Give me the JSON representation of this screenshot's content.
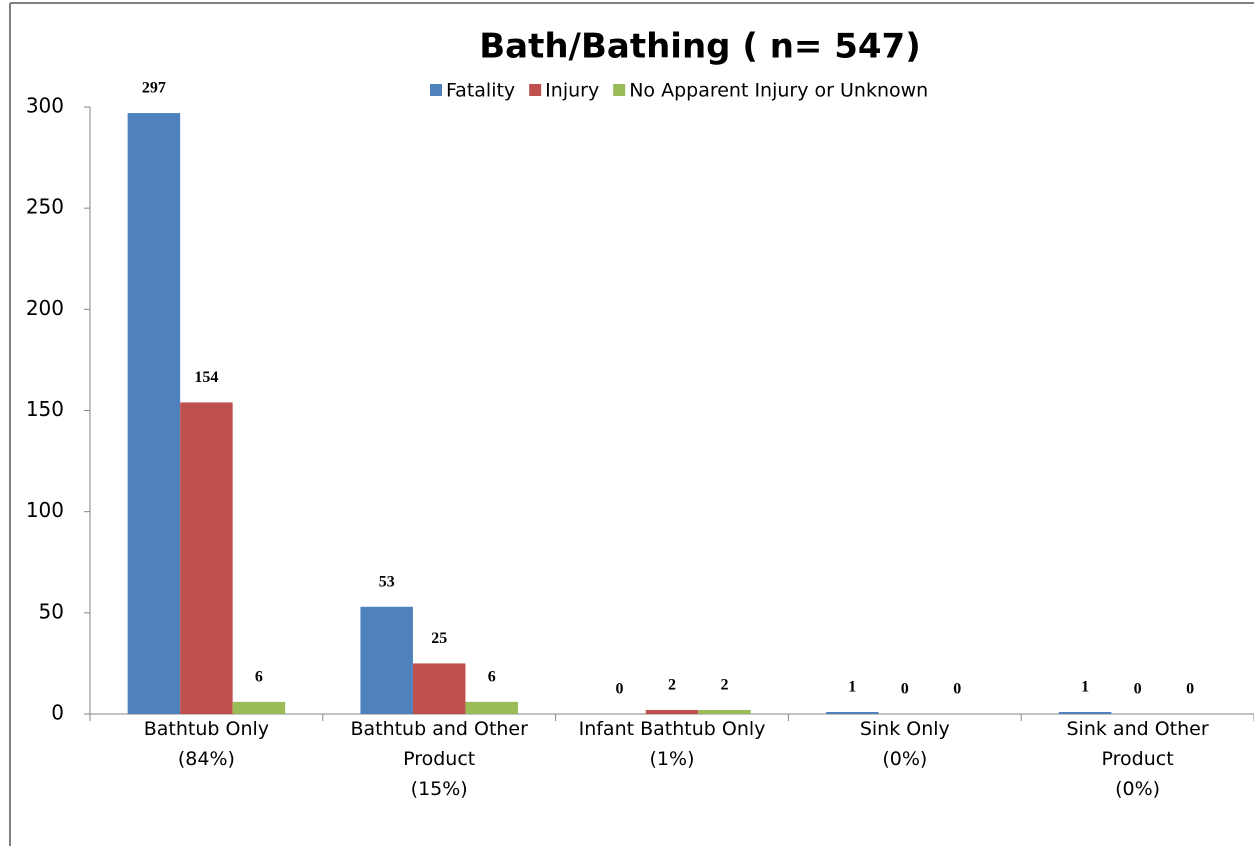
{
  "chart_data": {
    "type": "bar",
    "title": "Bath/Bathing ( n= 547)",
    "categories": [
      "Bathtub Only\n(84%)",
      "Bathtub and Other\nProduct\n(15%)",
      "Infant Bathtub Only\n(1%)",
      "Sink Only\n(0%)",
      "Sink and Other\nProduct\n(0%)"
    ],
    "series": [
      {
        "name": "Fatality",
        "color": "#4f81bd",
        "values": [
          297,
          53,
          0,
          1,
          1
        ]
      },
      {
        "name": "Injury",
        "color": "#c0504d",
        "values": [
          154,
          25,
          2,
          0,
          0
        ]
      },
      {
        "name": "No Apparent Injury or Unknown",
        "color": "#9bbb59",
        "values": [
          6,
          6,
          2,
          0,
          0
        ]
      }
    ],
    "ylim": [
      0,
      300
    ],
    "yticks": [
      0,
      50,
      100,
      150,
      200,
      250,
      300
    ],
    "grid": false,
    "legend": "top"
  }
}
